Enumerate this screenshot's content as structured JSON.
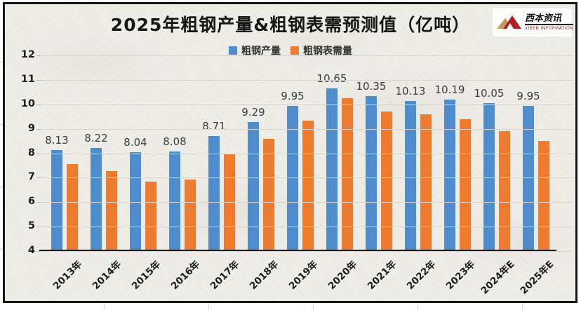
{
  "header": {
    "logo": {
      "brand": "西本资讯",
      "tagline": "XIBEN INFORMATION"
    }
  },
  "axes": {
    "y_ticks": [
      12,
      11,
      10,
      9,
      8,
      7,
      6,
      5,
      4
    ]
  },
  "chart_data": {
    "type": "bar",
    "title": "2025年粗钢产量&粗钢表需预测值（亿吨）",
    "categories": [
      "2013年",
      "2014年",
      "2015年",
      "2016年",
      "2017年",
      "2018年",
      "2019年",
      "2020年",
      "2021年",
      "2022年",
      "2023年",
      "2024年E",
      "2025年E"
    ],
    "series": [
      {
        "name": "粗钢产量",
        "color": "#4e8ccb",
        "values": [
          8.13,
          8.22,
          8.04,
          8.08,
          8.71,
          9.29,
          9.95,
          10.65,
          10.35,
          10.13,
          10.19,
          10.05,
          9.95
        ],
        "data_labels": true
      },
      {
        "name": "粗钢表需量",
        "color": "#ed7c31",
        "values": [
          7.56,
          7.27,
          6.83,
          6.92,
          7.96,
          8.6,
          9.33,
          10.25,
          9.7,
          9.58,
          9.4,
          8.89,
          8.51
        ],
        "data_labels": false
      }
    ],
    "xlabel": "",
    "ylabel": "",
    "ylim": [
      4,
      12
    ],
    "ytick_step": 1,
    "grid": true,
    "legend_position": "top"
  }
}
